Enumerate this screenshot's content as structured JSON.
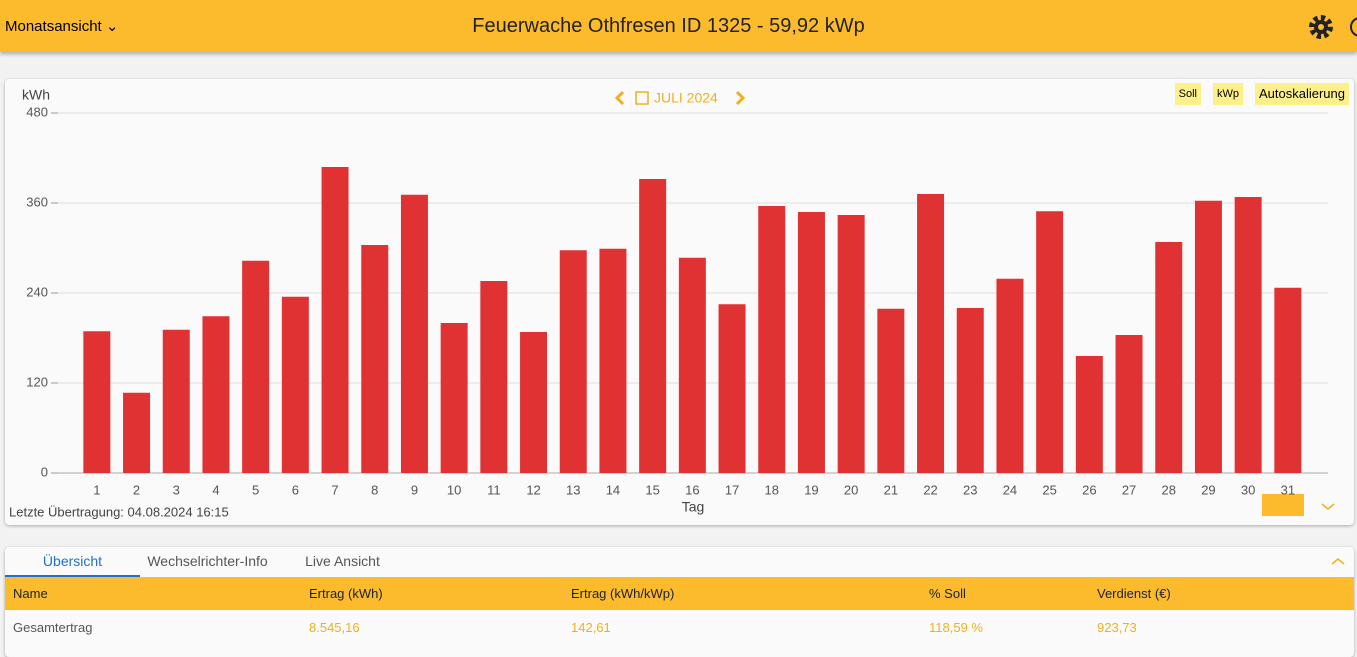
{
  "header": {
    "view": "Monatsansicht",
    "title": "Feuerwache Othfresen ID 1325 - 59,92 kWp"
  },
  "chart_data": {
    "type": "bar",
    "period": "JULI 2024",
    "y_label": "kWh",
    "x_label": "Tag",
    "toolbar": [
      "Soll",
      "kWp",
      "Autoskalierung"
    ],
    "categories": [
      "1",
      "2",
      "3",
      "4",
      "5",
      "6",
      "7",
      "8",
      "9",
      "10",
      "11",
      "12",
      "13",
      "14",
      "15",
      "16",
      "17",
      "18",
      "19",
      "20",
      "21",
      "22",
      "23",
      "24",
      "25",
      "26",
      "27",
      "28",
      "29",
      "30",
      "31"
    ],
    "values": [
      189,
      107,
      191,
      209,
      283,
      235,
      408,
      304,
      371,
      200,
      256,
      188,
      297,
      299,
      392,
      287,
      225,
      356,
      348,
      344,
      219,
      372,
      220,
      259,
      349,
      156,
      184,
      308,
      363,
      368,
      247
    ],
    "color": "#e03232",
    "ylim": [
      0,
      480
    ],
    "yticks": [
      0,
      120,
      240,
      360,
      480
    ],
    "grid": true,
    "last_transfer": "Letzte Übertragung: 04.08.2024 16:15"
  },
  "tabs": [
    "Übersicht",
    "Wechselrichter-Info",
    "Live Ansicht"
  ],
  "table": {
    "columns": [
      "Name",
      "Ertrag (kWh)",
      "Ertrag (kWh/kWp)",
      "% Soll",
      "Verdienst (€)"
    ],
    "rows": [
      [
        "Gesamtertrag",
        "8.545,16",
        "142,61",
        "118,59 %",
        "923,73"
      ]
    ]
  }
}
